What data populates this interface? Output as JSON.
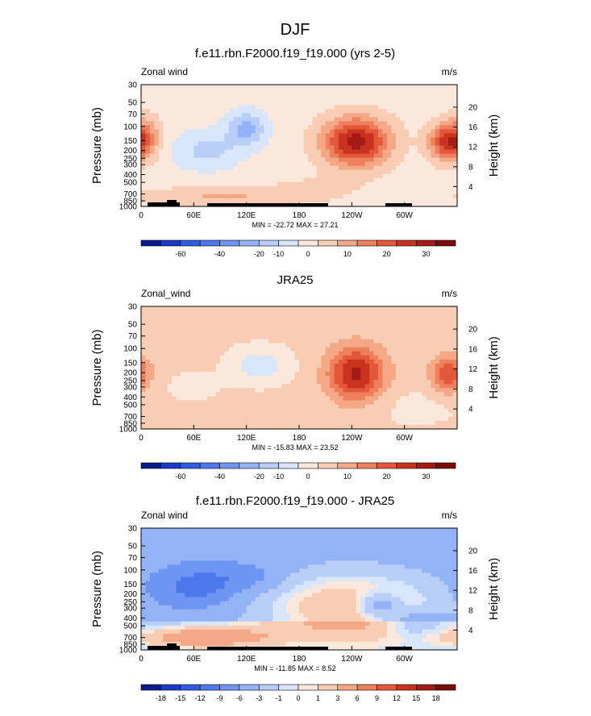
{
  "figure_title": "DJF",
  "chart_data": [
    {
      "type": "heatmap",
      "title": "f.e11.rbn.F2000.f19_f19.000 (yrs 2-5)",
      "left_label": "Zonal wind",
      "units_label": "m/s",
      "ylabel": "Pressure (mb)",
      "y2label": "Height (km)",
      "x_ticks": [
        "0",
        "60E",
        "120E",
        "180",
        "120W",
        "60W"
      ],
      "y_ticks": [
        "30",
        "50",
        "70",
        "100",
        "150",
        "200",
        "250",
        "300",
        "400",
        "500",
        "700",
        "850",
        "1000"
      ],
      "height_ticks": [
        "4",
        "8",
        "12",
        "16",
        "20"
      ],
      "minmax": "MIN = -22.72  MAX = 27.21",
      "colorbar_labels": [
        "-60",
        "-40",
        "-20",
        "-10",
        "0",
        "10",
        "20",
        "30"
      ]
    },
    {
      "type": "heatmap",
      "title": "JRA25",
      "left_label": "Zonal_wind",
      "units_label": "m/s",
      "ylabel": "Pressure (mb)",
      "y2label": "Height (km)",
      "x_ticks": [
        "0",
        "60E",
        "120E",
        "180",
        "120W",
        "60W"
      ],
      "y_ticks": [
        "30",
        "50",
        "70",
        "100",
        "150",
        "200",
        "250",
        "300",
        "400",
        "500",
        "700",
        "850",
        "1000"
      ],
      "height_ticks": [
        "4",
        "8",
        "12",
        "16",
        "20"
      ],
      "minmax": "MIN = -15.83  MAX = 23.52",
      "colorbar_labels": [
        "-60",
        "-40",
        "-20",
        "-10",
        "0",
        "10",
        "20",
        "30"
      ]
    },
    {
      "type": "heatmap",
      "title": "f.e11.rbn.F2000.f19_f19.000 - JRA25",
      "left_label": "Zonal wind",
      "units_label": "m/s",
      "ylabel": "Pressure (mb)",
      "y2label": "Height (km)",
      "x_ticks": [
        "0",
        "60E",
        "120E",
        "180",
        "120W",
        "60W"
      ],
      "y_ticks": [
        "30",
        "50",
        "70",
        "100",
        "150",
        "200",
        "250",
        "300",
        "400",
        "500",
        "700",
        "850",
        "1000"
      ],
      "height_ticks": [
        "4",
        "8",
        "12",
        "16",
        "20"
      ],
      "minmax": "MIN = -11.85  MAX =  8.52",
      "colorbar_labels": [
        "-18",
        "-15",
        "-12",
        "-9",
        "-6",
        "-3",
        "-1",
        "0",
        "1",
        "3",
        "6",
        "9",
        "12",
        "15",
        "18"
      ]
    }
  ],
  "colormap": [
    "#0a1a8c",
    "#1a3bc4",
    "#2f5be0",
    "#4d78ec",
    "#6f95f2",
    "#93b3f6",
    "#b8cef9",
    "#d8e6fb",
    "#fbe8dc",
    "#f8cdb3",
    "#f4a886",
    "#ee805e",
    "#e3573a",
    "#c8321f",
    "#a51a14",
    "#7a0a0a"
  ],
  "panels": [
    {
      "fill_rule": "model"
    },
    {
      "fill_rule": "obs"
    },
    {
      "fill_rule": "diff"
    }
  ]
}
